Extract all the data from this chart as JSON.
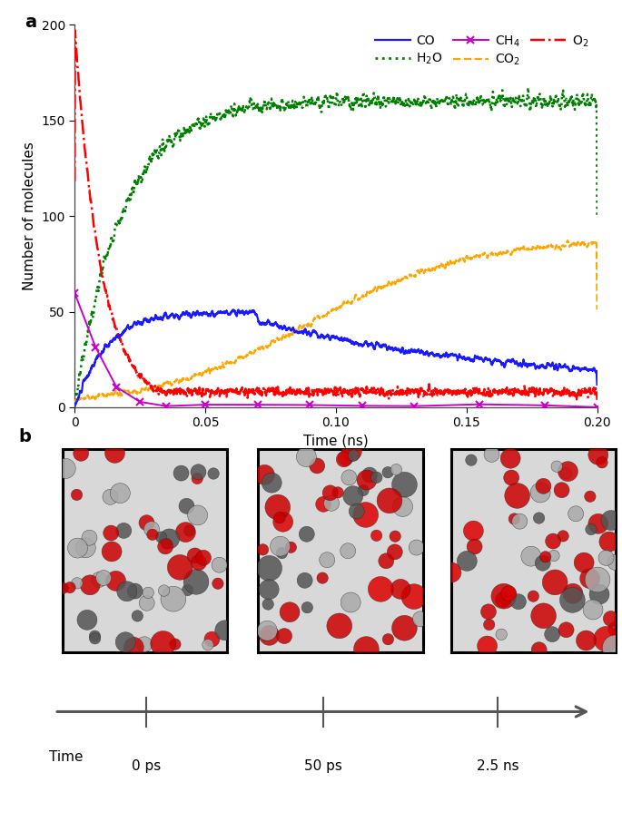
{
  "xlabel": "Time (ns)",
  "ylabel": "Number of molecules",
  "xlim": [
    0,
    0.2
  ],
  "ylim": [
    0,
    200
  ],
  "yticks": [
    0,
    50,
    100,
    150,
    200
  ],
  "xticks": [
    0,
    0.05,
    0.1,
    0.15,
    0.2
  ],
  "xtick_labels": [
    "0",
    "0.05",
    "0.10",
    "0.15",
    "0.20"
  ],
  "line_colors": {
    "CO": "#1a1aff",
    "H2O": "#008000",
    "CH4": "#cc00cc",
    "CO2": "#ffa500",
    "O2": "#ff0000"
  },
  "time_labels": [
    "0 ps",
    "50 ps",
    "2.5 ns"
  ],
  "arrow_label": "Time",
  "bg_color": "#ffffff",
  "lw": 1.4
}
